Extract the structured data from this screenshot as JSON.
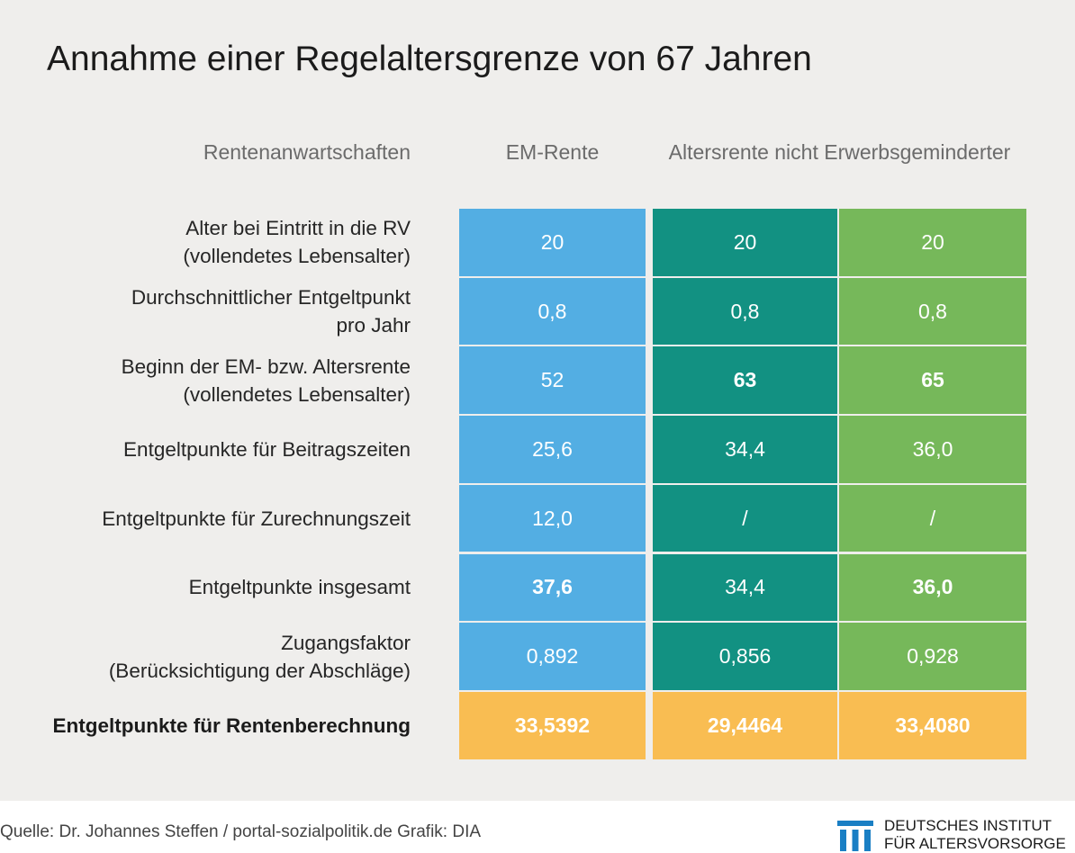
{
  "chart_data": {
    "type": "table",
    "title": "Annahme einer Regelaltersgrenze von 67 Jahren",
    "header": {
      "row_label": "Rentenanwartschaften",
      "em": "EM-Rente",
      "alters": "Altersrente nicht Erwerbsgeminderter"
    },
    "column_colors": [
      "#53aee3",
      "#129182",
      "#76b85a"
    ],
    "total_color": "#f9bd52",
    "rows": [
      {
        "label": [
          "Alter bei Eintritt in die RV",
          "(vollendetes Lebensalter)"
        ],
        "values": [
          "20",
          "20",
          "20"
        ],
        "bold": [
          false,
          false,
          false
        ],
        "total": false
      },
      {
        "label": [
          "Durchschnittlicher Entgeltpunkt",
          "pro Jahr"
        ],
        "values": [
          "0,8",
          "0,8",
          "0,8"
        ],
        "bold": [
          false,
          false,
          false
        ],
        "total": false
      },
      {
        "label": [
          "Beginn der EM- bzw. Altersrente",
          "(vollendetes Lebensalter)"
        ],
        "values": [
          "52",
          "63",
          "65"
        ],
        "bold": [
          false,
          true,
          true
        ],
        "total": false
      },
      {
        "label": [
          "Entgeltpunkte für Beitragszeiten"
        ],
        "values": [
          "25,6",
          "34,4",
          "36,0"
        ],
        "bold": [
          false,
          false,
          false
        ],
        "total": false
      },
      {
        "label": [
          "Entgeltpunkte für Zurechnungszeit"
        ],
        "values": [
          "12,0",
          "/",
          "/"
        ],
        "bold": [
          false,
          false,
          false
        ],
        "total": false
      },
      {
        "label": [
          "Entgeltpunkte insgesamt"
        ],
        "values": [
          "37,6",
          "34,4",
          "36,0"
        ],
        "bold": [
          true,
          false,
          true
        ],
        "total": false
      },
      {
        "label": [
          "Zugangsfaktor",
          "(Berücksichtigung der Abschläge)"
        ],
        "values": [
          "0,892",
          "0,856",
          "0,928"
        ],
        "bold": [
          false,
          false,
          false
        ],
        "total": false
      },
      {
        "label": [
          "Entgeltpunkte für Rentenberechnung"
        ],
        "values": [
          "33,5392",
          "29,4464",
          "33,4080"
        ],
        "bold": [
          true,
          true,
          true
        ],
        "total": true
      }
    ]
  },
  "footer": {
    "source": "Quelle: Dr. Johannes Steffen / portal-sozialpolitik.de  Grafik: DIA",
    "logo_line1": "DEUTSCHES INSTITUT",
    "logo_line2": "FÜR ALTERSVORSORGE",
    "logo_color": "#1a7fc4"
  }
}
